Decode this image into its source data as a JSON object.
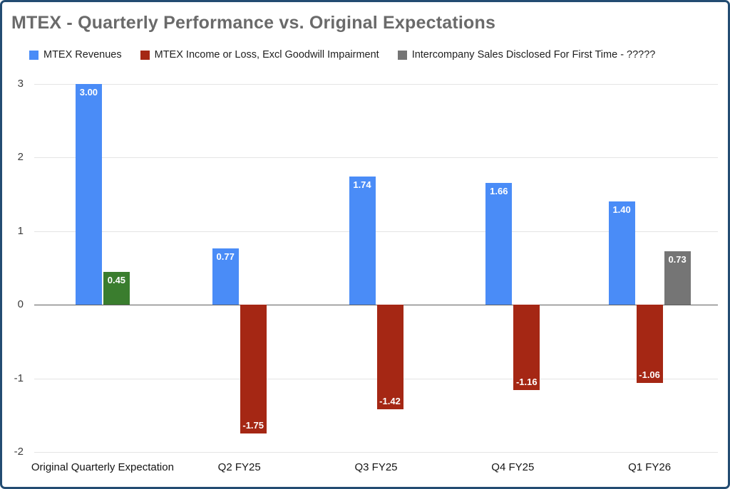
{
  "title": "MTEX - Quarterly Performance vs. Original Expectations",
  "legend": {
    "items": [
      {
        "label": "MTEX Revenues",
        "color": "#4a8cf7"
      },
      {
        "label": "MTEX Income or Loss, Excl Goodwill Impairment",
        "color": "#a52714"
      },
      {
        "label": "Intercompany Sales Disclosed For First Time - ?????",
        "color": "#757575"
      }
    ]
  },
  "chart_data": {
    "type": "bar",
    "title": "MTEX - Quarterly Performance vs. Original Expectations",
    "categories": [
      "Original Quarterly Expectation",
      "Q2 FY25",
      "Q3 FY25",
      "Q4 FY25",
      "Q1 FY26"
    ],
    "series": [
      {
        "name": "MTEX Revenues",
        "color": "#4a8cf7",
        "values": [
          3.0,
          0.77,
          1.74,
          1.66,
          1.4
        ],
        "labels": [
          "3.00",
          "0.77",
          "1.74",
          "1.66",
          "1.40"
        ]
      },
      {
        "name": "MTEX Income or Loss, Excl Goodwill Impairment",
        "color": "#a52714",
        "bar_colors": [
          "#3a7d2e",
          null,
          null,
          null,
          null
        ],
        "values": [
          0.45,
          -1.75,
          -1.42,
          -1.16,
          -1.06
        ],
        "labels": [
          "0.45",
          "-1.75",
          "-1.42",
          "-1.16",
          "-1.06"
        ]
      },
      {
        "name": "Intercompany Sales Disclosed For First Time - ?????",
        "color": "#757575",
        "values": [
          null,
          null,
          null,
          null,
          0.73
        ],
        "labels": [
          null,
          null,
          null,
          null,
          "0.73"
        ]
      }
    ],
    "ylim": [
      -2,
      3
    ],
    "yticks": [
      3,
      2,
      1,
      0,
      -1,
      -2
    ],
    "grid": true,
    "legend_position": "top"
  }
}
